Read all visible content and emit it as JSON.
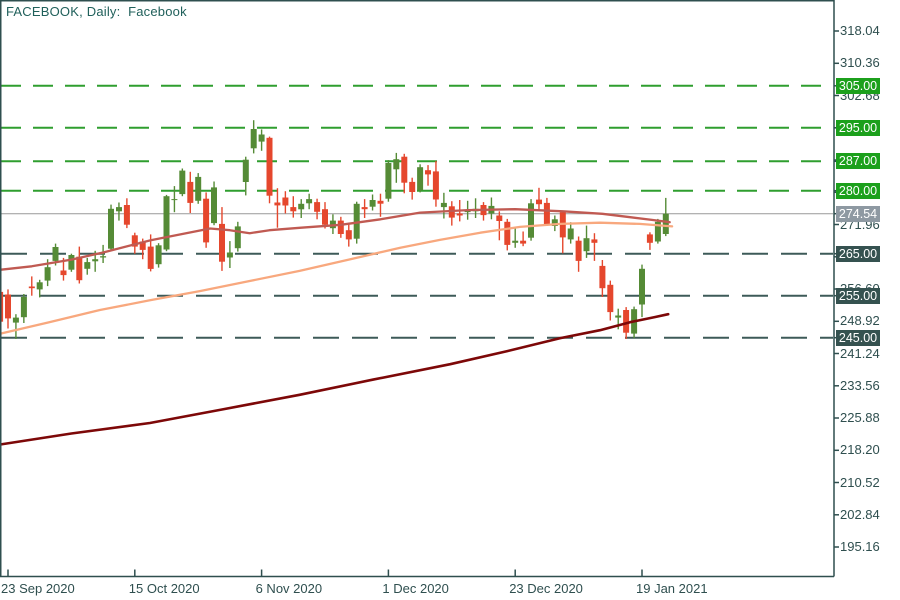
{
  "title": "FACEBOOK, Daily:  Facebook",
  "colors": {
    "background": "#ffffff",
    "frame": "#2f4f4f",
    "axis_text": "#2f4f4f",
    "title_text": "#20605b",
    "candle_up": "#558b36",
    "candle_down": "#e5472d",
    "ma20": "#c05a52",
    "ma50": "#f8a87e",
    "ma200": "#7d0808",
    "level_green_line": "#2f9e2f",
    "level_green_badge": "#1ca01c",
    "level_dark_line": "#3d5a58",
    "level_dark_badge": "#355250",
    "current_line": "#999999",
    "current_badge": "#8e99a2"
  },
  "chart_data": {
    "type": "candlestick",
    "symbol": "FACEBOOK",
    "timeframe": "Daily",
    "title": "FACEBOOK, Daily:  Facebook",
    "y_axis": {
      "min": 195.16,
      "max": 318.04,
      "step": 7.68,
      "ticks": [
        "318.04",
        "310.36",
        "302.68",
        "295.00",
        "287.32",
        "279.64",
        "271.96",
        "264.28",
        "256.60",
        "248.92",
        "241.24",
        "233.56",
        "225.88",
        "218.20",
        "210.52",
        "202.84",
        "195.16"
      ]
    },
    "x_axis": {
      "ticks": [
        {
          "label": "23 Sep 2020",
          "index": 0
        },
        {
          "label": "15 Oct 2020",
          "index": 16
        },
        {
          "label": "6 Nov 2020",
          "index": 32
        },
        {
          "label": "1 Dec 2020",
          "index": 48
        },
        {
          "label": "23 Dec 2020",
          "index": 64
        },
        {
          "label": "19 Jan 2021",
          "index": 80
        }
      ]
    },
    "levels": [
      {
        "value": 305.0,
        "label": "305.00",
        "style": "green"
      },
      {
        "value": 295.0,
        "label": "295.00",
        "style": "green"
      },
      {
        "value": 287.0,
        "label": "287.00",
        "style": "green"
      },
      {
        "value": 280.0,
        "label": "280.00",
        "style": "green"
      },
      {
        "value": 265.0,
        "label": "265.00",
        "style": "dark"
      },
      {
        "value": 255.0,
        "label": "255.00",
        "style": "dark"
      },
      {
        "value": 245.0,
        "label": "245.00",
        "style": "dark"
      }
    ],
    "current_price": {
      "value": 274.54,
      "label": "274.54"
    },
    "pre_candle": [
      255.9,
      256.4,
      246.5,
      248.8
    ],
    "candles": [
      [
        255.3,
        256.5,
        247.2,
        249.6
      ],
      [
        248.6,
        250.6,
        244.7,
        249.8
      ],
      [
        249.9,
        255.4,
        248.5,
        254.7
      ],
      [
        257.2,
        259.6,
        255.0,
        256.8
      ],
      [
        256.5,
        258.8,
        254.6,
        258.2
      ],
      [
        258.6,
        263.7,
        257.3,
        261.8
      ],
      [
        263.3,
        267.4,
        262.2,
        266.6
      ],
      [
        261.0,
        264.0,
        258.6,
        259.9
      ],
      [
        261.2,
        265.0,
        260.7,
        264.7
      ],
      [
        264.3,
        266.7,
        257.9,
        258.7
      ],
      [
        261.4,
        264.0,
        260.0,
        263.0
      ],
      [
        263.2,
        265.7,
        260.7,
        263.7
      ],
      [
        264.1,
        267.1,
        262.8,
        264.4
      ],
      [
        266.2,
        276.7,
        265.8,
        275.7
      ],
      [
        275.1,
        277.2,
        272.9,
        276.1
      ],
      [
        276.6,
        278.2,
        271.1,
        271.9
      ],
      [
        269.4,
        270.0,
        265.0,
        266.7
      ],
      [
        267.9,
        268.6,
        263.7,
        265.9
      ],
      [
        266.7,
        269.6,
        260.8,
        261.4
      ],
      [
        262.5,
        267.5,
        261.7,
        267.0
      ],
      [
        266.0,
        279.0,
        265.6,
        278.7
      ],
      [
        277.9,
        281.1,
        274.9,
        278.0
      ],
      [
        279.2,
        285.3,
        278.7,
        284.8
      ],
      [
        282.1,
        284.5,
        274.7,
        277.1
      ],
      [
        277.6,
        284.2,
        276.9,
        283.3
      ],
      [
        278.1,
        279.6,
        266.4,
        267.7
      ],
      [
        272.3,
        282.2,
        271.8,
        280.8
      ],
      [
        272.1,
        276.1,
        260.9,
        263.1
      ],
      [
        264.1,
        268.0,
        261.6,
        265.3
      ],
      [
        266.3,
        272.6,
        265.5,
        271.5
      ],
      [
        282.1,
        288.1,
        278.9,
        287.4
      ],
      [
        290.1,
        296.8,
        288.9,
        294.7
      ],
      [
        291.7,
        294.6,
        289.5,
        293.4
      ],
      [
        292.6,
        292.9,
        277.0,
        278.8
      ],
      [
        277.2,
        280.6,
        271.2,
        276.5
      ],
      [
        278.4,
        279.9,
        274.6,
        276.5
      ],
      [
        276.1,
        278.7,
        273.6,
        275.1
      ],
      [
        275.6,
        278.0,
        273.5,
        276.9
      ],
      [
        277.0,
        279.3,
        275.6,
        278.0
      ],
      [
        277.3,
        278.1,
        273.2,
        275.0
      ],
      [
        275.6,
        277.3,
        271.0,
        271.9
      ],
      [
        271.1,
        274.4,
        269.7,
        272.9
      ],
      [
        272.9,
        273.8,
        268.8,
        269.7
      ],
      [
        270.6,
        272.4,
        266.7,
        268.4
      ],
      [
        268.6,
        277.4,
        267.4,
        276.9
      ],
      [
        276.1,
        278.0,
        273.5,
        275.6
      ],
      [
        276.2,
        279.1,
        275.3,
        277.8
      ],
      [
        277.6,
        279.3,
        273.8,
        276.9
      ],
      [
        278.1,
        287.3,
        277.4,
        286.6
      ],
      [
        285.1,
        289.0,
        281.9,
        287.5
      ],
      [
        288.1,
        288.8,
        279.4,
        281.9
      ],
      [
        282.1,
        283.1,
        277.9,
        279.7
      ],
      [
        280.1,
        286.3,
        279.6,
        285.6
      ],
      [
        284.9,
        286.1,
        281.2,
        283.9
      ],
      [
        284.6,
        287.1,
        276.2,
        277.9
      ],
      [
        276.1,
        279.5,
        273.4,
        277.1
      ],
      [
        276.3,
        277.5,
        271.7,
        273.6
      ],
      [
        274.6,
        277.8,
        272.7,
        274.1
      ],
      [
        274.9,
        277.6,
        273.1,
        275.5
      ],
      [
        275.1,
        278.2,
        273.5,
        275.7
      ],
      [
        276.6,
        277.3,
        272.9,
        274.2
      ],
      [
        274.6,
        278.4,
        273.2,
        276.4
      ],
      [
        274.1,
        275.1,
        268.2,
        272.8
      ],
      [
        272.6,
        273.3,
        265.8,
        267.1
      ],
      [
        267.6,
        271.1,
        266.4,
        268.1
      ],
      [
        268.1,
        270.3,
        266.8,
        267.4
      ],
      [
        268.8,
        278.0,
        268.1,
        277.0
      ],
      [
        277.9,
        280.7,
        275.4,
        276.8
      ],
      [
        277.1,
        278.3,
        271.6,
        271.9
      ],
      [
        271.6,
        274.1,
        270.4,
        273.2
      ],
      [
        274.9,
        275.1,
        265.1,
        268.9
      ],
      [
        268.4,
        272.5,
        267.4,
        271.0
      ],
      [
        268.1,
        269.1,
        260.7,
        263.3
      ],
      [
        265.6,
        271.7,
        264.0,
        268.7
      ],
      [
        268.4,
        269.9,
        263.3,
        267.6
      ],
      [
        262.1,
        263.5,
        254.7,
        256.8
      ],
      [
        257.6,
        258.6,
        249.1,
        251.1
      ],
      [
        249.8,
        251.9,
        247.0,
        250.3
      ],
      [
        251.6,
        252.3,
        244.7,
        246.2
      ],
      [
        246.0,
        252.4,
        244.9,
        251.8
      ],
      [
        252.9,
        262.4,
        249.9,
        261.4
      ],
      [
        269.6,
        270.1,
        265.9,
        267.6
      ],
      [
        267.9,
        273.3,
        267.4,
        272.6
      ],
      [
        269.7,
        278.3,
        269.2,
        274.54
      ]
    ],
    "moving_averages": [
      {
        "name": "ma-200-line",
        "color_key": "ma200",
        "width": 2.6,
        "points": [
          [
            -1,
            219.6
          ],
          [
            8,
            222.2
          ],
          [
            17.9,
            224.7
          ],
          [
            27,
            227.9
          ],
          [
            36.8,
            231.4
          ],
          [
            46,
            235.0
          ],
          [
            55.8,
            238.7
          ],
          [
            63,
            241.8
          ],
          [
            69.7,
            244.9
          ],
          [
            74.7,
            246.8
          ],
          [
            78.5,
            248.7
          ],
          [
            81.6,
            249.9
          ],
          [
            83.3,
            250.6
          ]
        ]
      },
      {
        "name": "ma-50-line",
        "color_key": "ma50",
        "width": 2.3,
        "points": [
          [
            -1,
            246.0
          ],
          [
            5,
            248.6
          ],
          [
            11.6,
            251.6
          ],
          [
            17.9,
            253.9
          ],
          [
            24.2,
            256.1
          ],
          [
            30.5,
            258.5
          ],
          [
            36.8,
            260.9
          ],
          [
            43.2,
            263.7
          ],
          [
            49.5,
            266.4
          ],
          [
            54.5,
            268.3
          ],
          [
            59.6,
            270.0
          ],
          [
            64.6,
            271.4
          ],
          [
            69.7,
            272.1
          ],
          [
            74.7,
            272.4
          ],
          [
            79.7,
            272.1
          ],
          [
            83.8,
            271.5
          ]
        ]
      },
      {
        "name": "ma-20-line",
        "color_key": "ma20",
        "width": 2.3,
        "points": [
          [
            -1,
            261.2
          ],
          [
            3,
            262.0
          ],
          [
            8,
            263.6
          ],
          [
            12,
            265.3
          ],
          [
            18,
            268.2
          ],
          [
            25.5,
            271.0
          ],
          [
            28,
            270.6
          ],
          [
            30.5,
            269.9
          ],
          [
            33,
            270.6
          ],
          [
            37,
            271.2
          ],
          [
            42,
            271.9
          ],
          [
            47,
            273.2
          ],
          [
            52,
            274.8
          ],
          [
            58,
            275.4
          ],
          [
            64,
            275.6
          ],
          [
            70,
            275.1
          ],
          [
            75,
            274.5
          ],
          [
            78.5,
            273.7
          ],
          [
            81.5,
            273.0
          ],
          [
            83.5,
            272.5
          ]
        ]
      }
    ]
  }
}
